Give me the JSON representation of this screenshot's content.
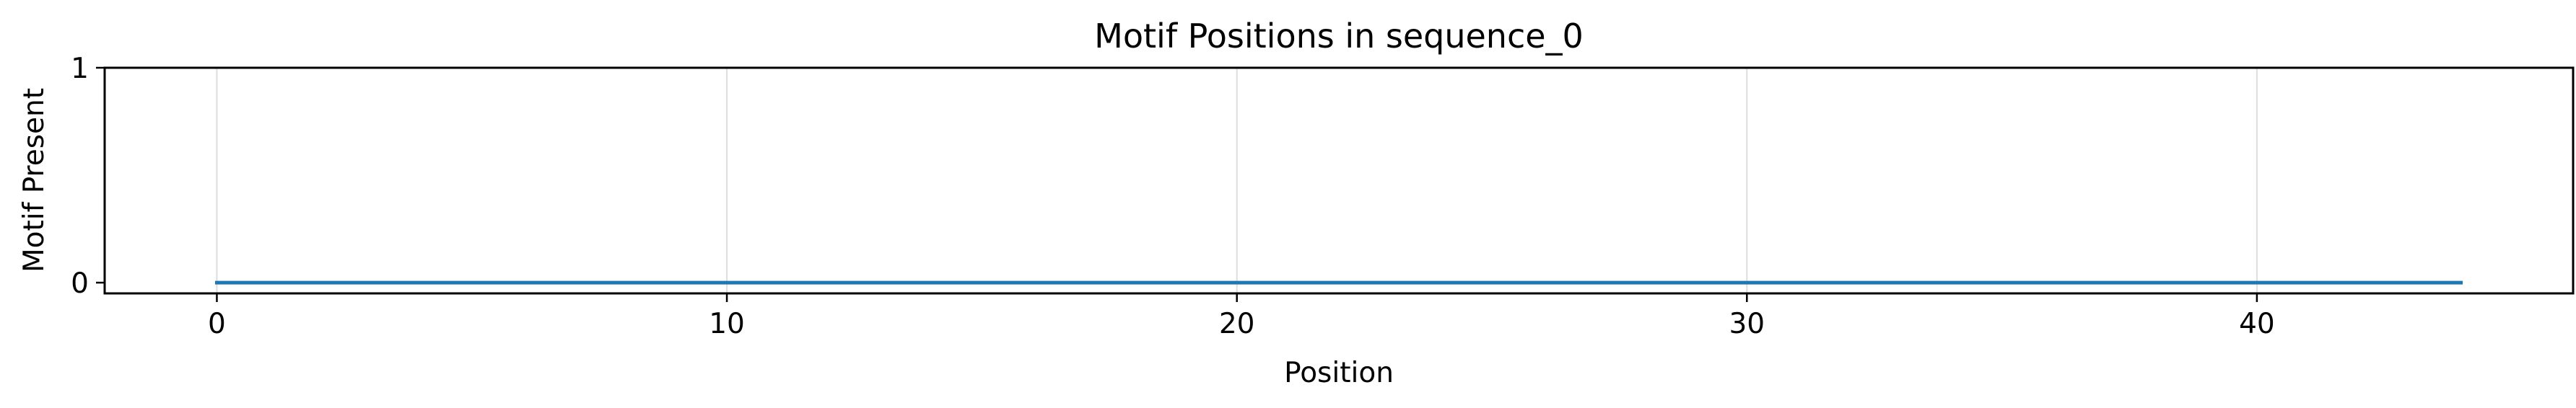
{
  "chart_data": {
    "type": "line",
    "title": "Motif Positions in sequence_0",
    "xlabel": "Position",
    "ylabel": "Motif Present",
    "xlim": [
      -2.2,
      46.2
    ],
    "ylim": [
      -0.05,
      1
    ],
    "xticks": [
      0,
      10,
      20,
      30,
      40
    ],
    "yticks": [
      0,
      1
    ],
    "grid": true,
    "series": [
      {
        "x": [
          0,
          1,
          2,
          3,
          4,
          5,
          6,
          7,
          8,
          9,
          10,
          11,
          12,
          13,
          14,
          15,
          16,
          17,
          18,
          19,
          20,
          21,
          22,
          23,
          24,
          25,
          26,
          27,
          28,
          29,
          30,
          31,
          32,
          33,
          34,
          35,
          36,
          37,
          38,
          39,
          40,
          41,
          42,
          43,
          44
        ],
        "values": [
          0,
          0,
          0,
          0,
          0,
          0,
          0,
          0,
          0,
          0,
          0,
          0,
          0,
          0,
          0,
          0,
          0,
          0,
          0,
          0,
          0,
          0,
          0,
          0,
          0,
          0,
          0,
          0,
          0,
          0,
          0,
          0,
          0,
          0,
          0,
          0,
          0,
          0,
          0,
          0,
          0,
          0,
          0,
          0,
          0
        ],
        "color": "#1f77b4"
      }
    ],
    "colors": {
      "grid": "#dddddd",
      "axis": "#000000",
      "line": "#1f77b4"
    }
  }
}
